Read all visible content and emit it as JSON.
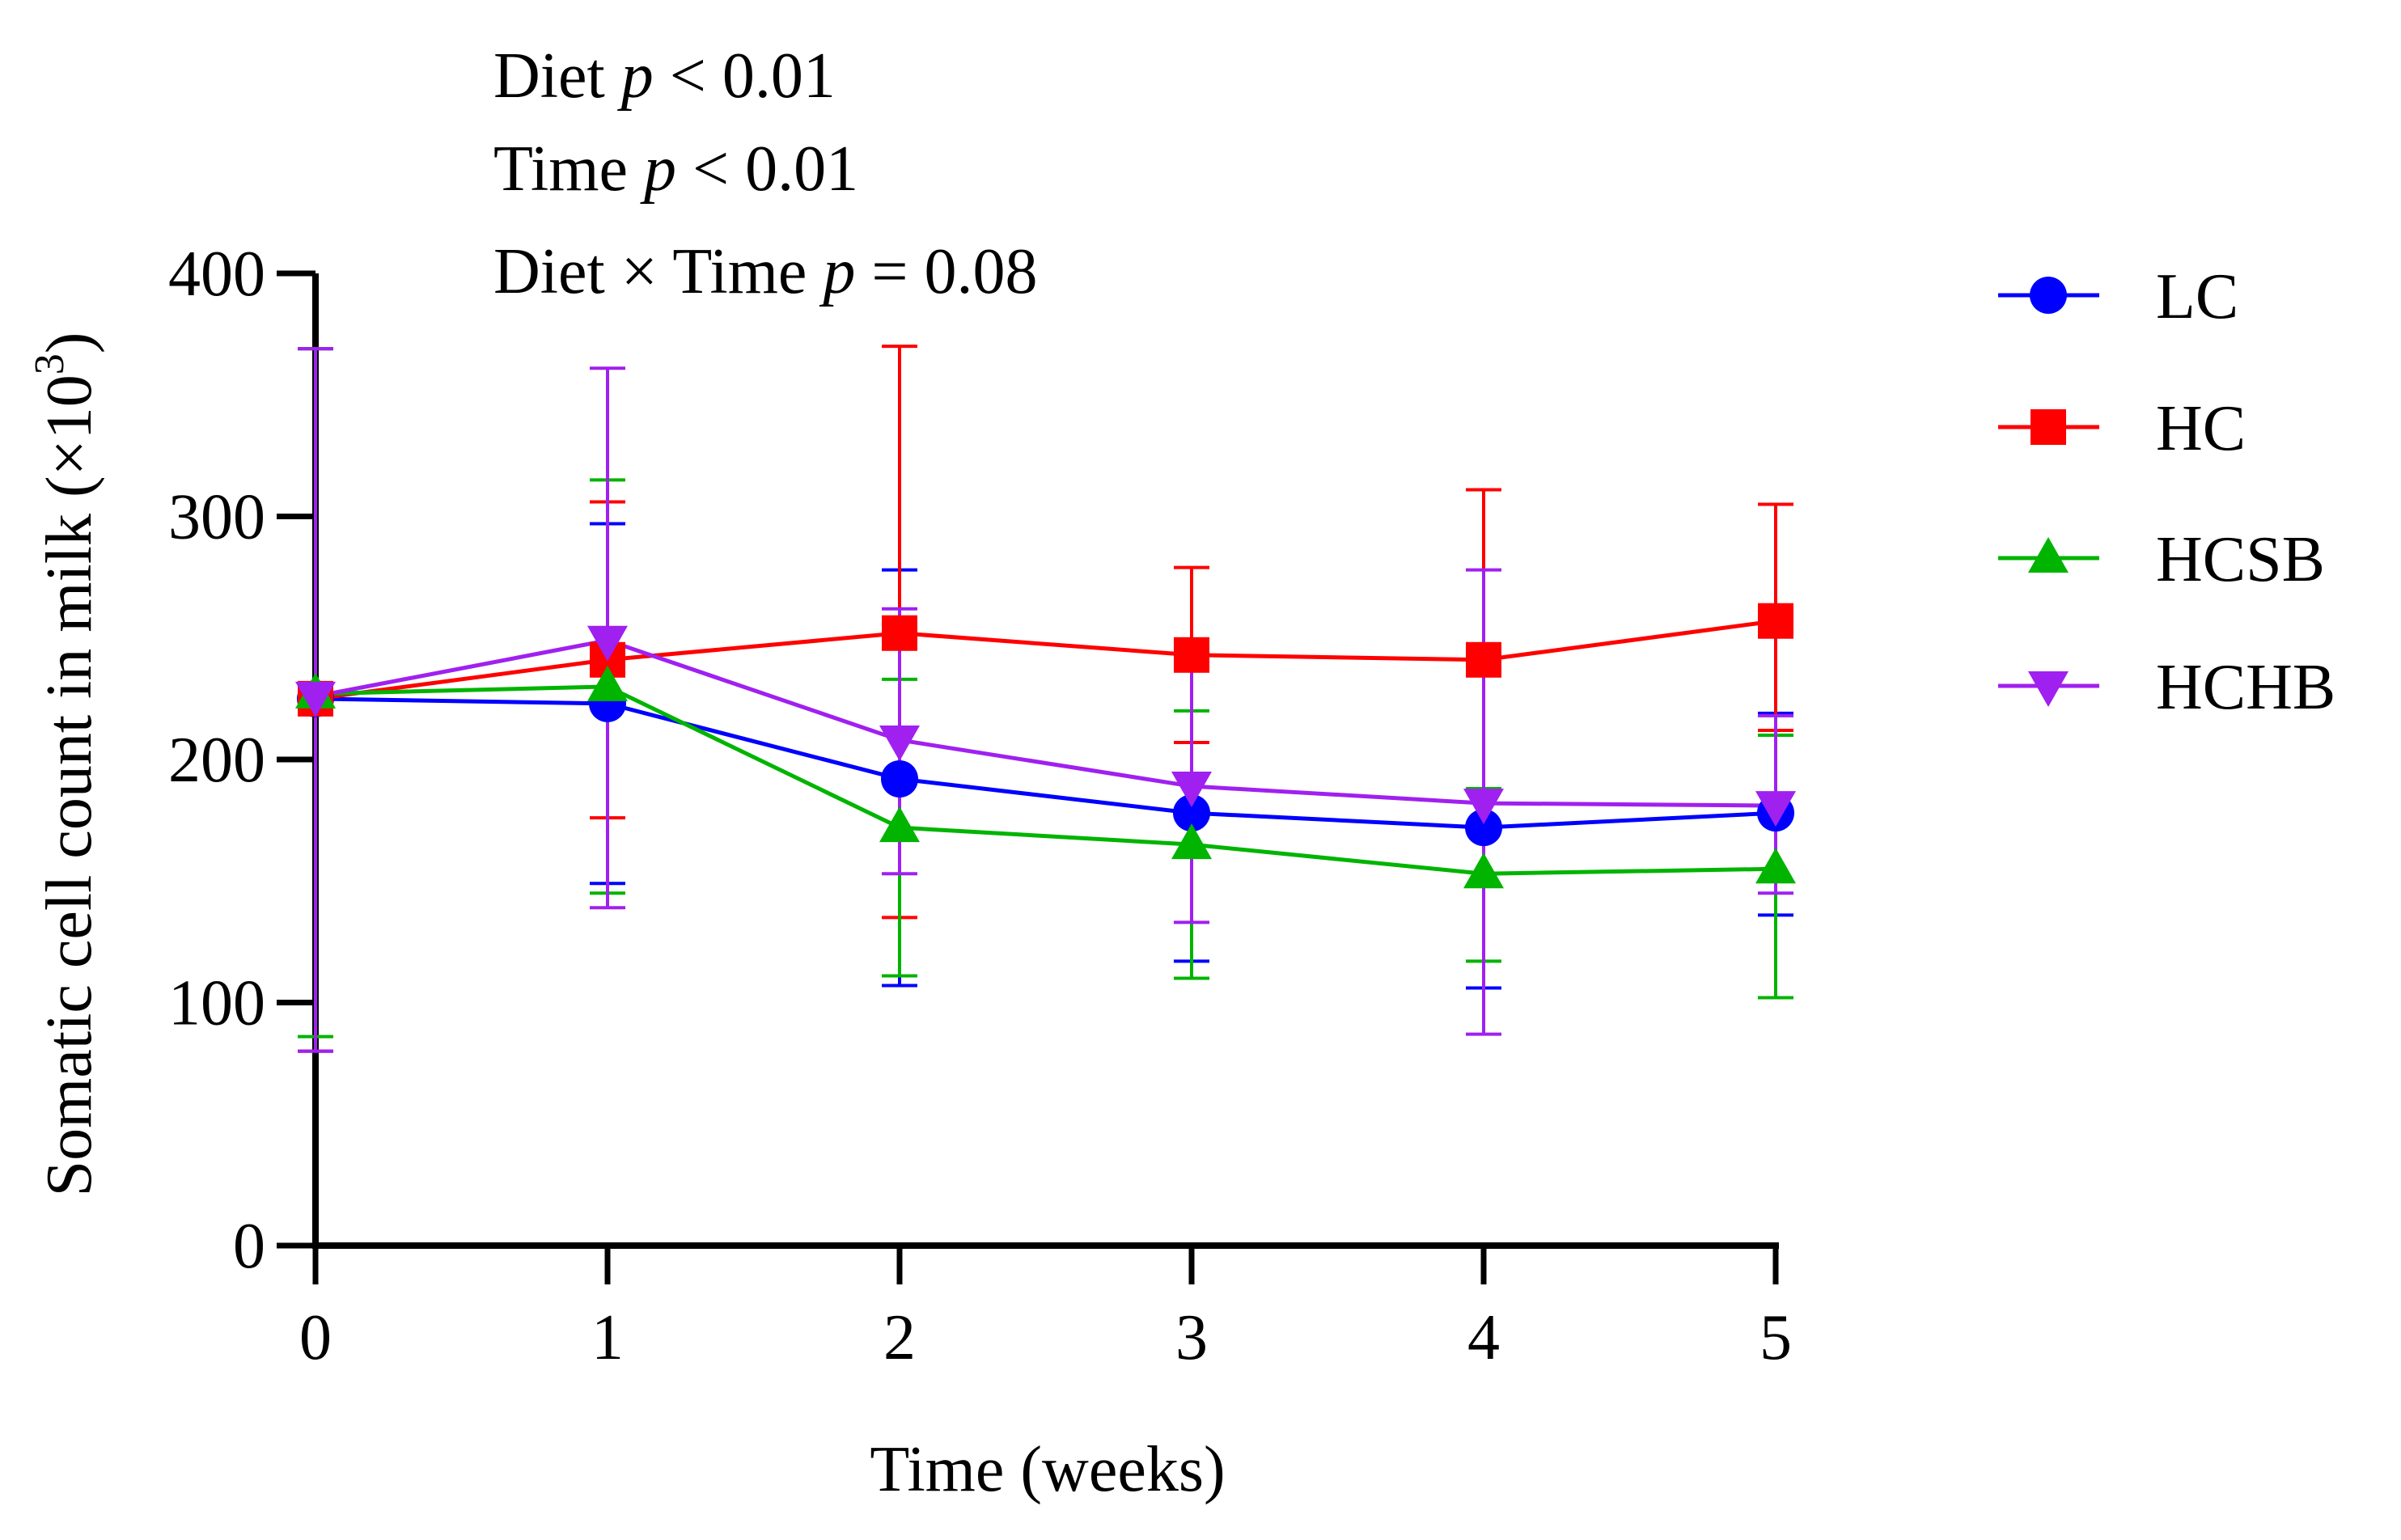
{
  "chart_data": {
    "type": "line",
    "title": "",
    "xlabel": "Time (weeks)",
    "ylabel_main": "Somatic cell count in milk (×10",
    "ylabel_sup": "3",
    "ylabel_end": ")",
    "x": [
      0,
      1,
      2,
      3,
      4,
      5
    ],
    "x_tick_labels": [
      "0",
      "1",
      "2",
      "3",
      "4",
      "5"
    ],
    "xlim": [
      0,
      5
    ],
    "ylim": [
      0,
      400
    ],
    "y_ticks": [
      0,
      100,
      200,
      300,
      400
    ],
    "y_tick_labels": [
      "0",
      "100",
      "200",
      "300",
      "400"
    ],
    "grid": false,
    "legend_position": "right",
    "annotations": [
      {
        "pre": "Diet ",
        "italic": "p",
        "post": " < 0.01"
      },
      {
        "pre": "Time ",
        "italic": "p",
        "post": " < 0.01"
      },
      {
        "pre": "Diet × Time ",
        "italic": "p",
        "post": " = 0.08"
      }
    ],
    "series": [
      {
        "name": "LC",
        "color": "#0000ff",
        "marker": "circle",
        "values": [
          225,
          223,
          192,
          178,
          172,
          178
        ],
        "err_upper": [
          369,
          297,
          278,
          238,
          238,
          219
        ],
        "err_lower": [
          80,
          149,
          107,
          117,
          106,
          136
        ]
      },
      {
        "name": "HC",
        "color": "#ff0000",
        "marker": "square",
        "values": [
          225,
          241,
          252,
          243,
          241,
          257
        ],
        "err_upper": [
          369,
          306,
          370,
          279,
          311,
          305
        ],
        "err_lower": [
          80,
          176,
          135,
          207,
          171,
          212
        ]
      },
      {
        "name": "HCSB",
        "color": "#00b400",
        "marker": "triangle-up",
        "values": [
          227,
          230,
          172,
          165,
          153,
          155
        ],
        "err_upper": [
          369,
          315,
          233,
          220,
          188,
          210
        ],
        "err_lower": [
          86,
          145,
          111,
          110,
          117,
          102
        ]
      },
      {
        "name": "HCHB",
        "color": "#a020f0",
        "marker": "triangle-down",
        "values": [
          226,
          249,
          208,
          189,
          182,
          181
        ],
        "err_upper": [
          369,
          361,
          262,
          237,
          278,
          218
        ],
        "err_lower": [
          80,
          139,
          153,
          133,
          87,
          145
        ]
      }
    ]
  }
}
